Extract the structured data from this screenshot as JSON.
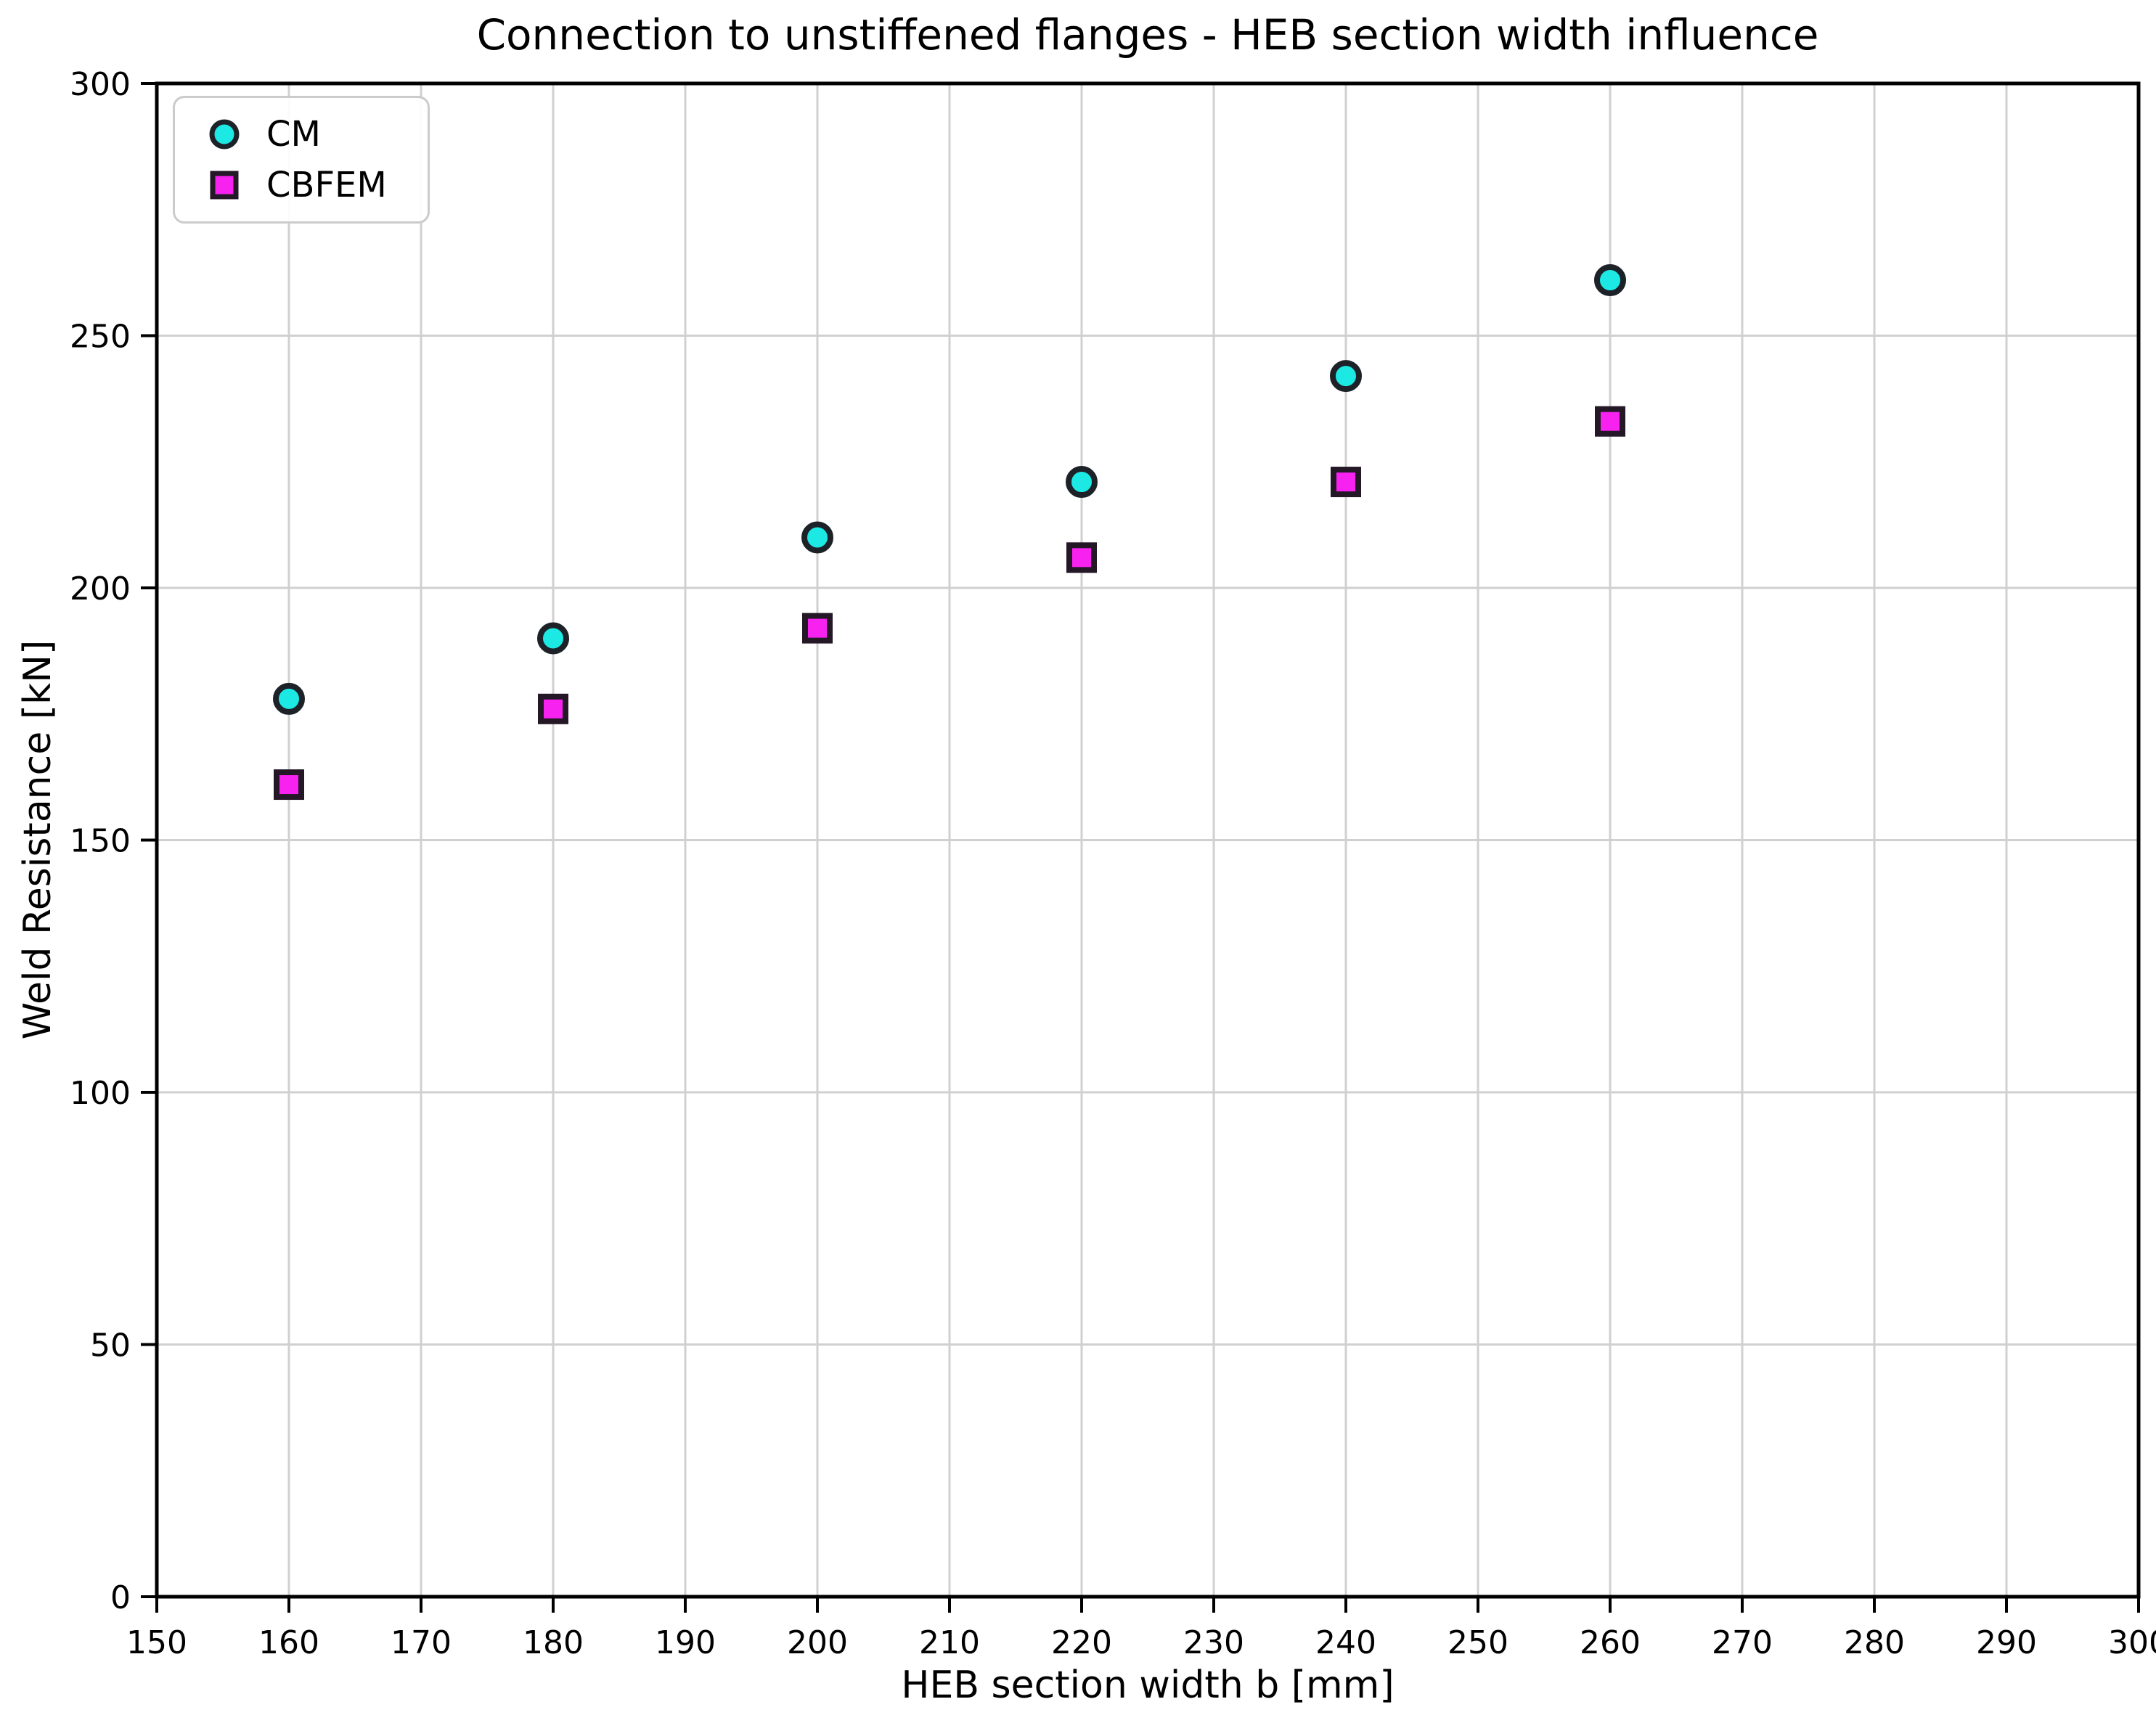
{
  "chart_data": {
    "type": "scatter",
    "title": "Connection to unstiffened flanges - HEB section width influence",
    "xlabel": "HEB section width b [mm]",
    "ylabel": "Weld Resistance [kN]",
    "xlim": [
      150,
      300
    ],
    "ylim": [
      0,
      300
    ],
    "xticks": [
      150,
      160,
      170,
      180,
      190,
      200,
      210,
      220,
      230,
      240,
      250,
      260,
      270,
      280,
      290,
      300
    ],
    "yticks": [
      0,
      50,
      100,
      150,
      200,
      250,
      300
    ],
    "grid": true,
    "legend_position": "upper-left",
    "x": [
      160,
      180,
      200,
      220,
      240,
      260
    ],
    "series": [
      {
        "name": "CM",
        "marker": "circle",
        "fill_color": "#1de9e4",
        "edge_color": "#1d2228",
        "values": [
          178,
          190,
          210,
          221,
          242,
          261
        ]
      },
      {
        "name": "CBFEM",
        "marker": "square",
        "fill_color": "#f822f0",
        "edge_color": "#241726",
        "values": [
          161,
          176,
          192,
          206,
          221,
          233
        ]
      }
    ]
  },
  "colors": {
    "grid": "#d0d0d0",
    "spine": "#000000",
    "text": "#000000",
    "legend_border": "#cbcbcb",
    "background": "#ffffff"
  }
}
